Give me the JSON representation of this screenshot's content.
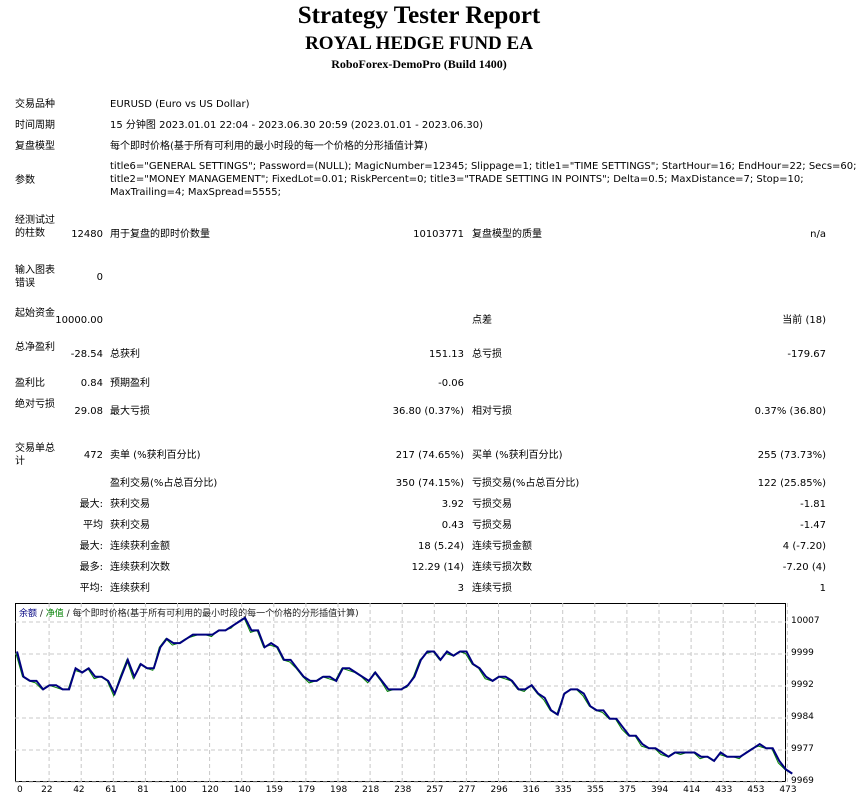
{
  "header": {
    "title": "Strategy Tester Report",
    "ea_name": "ROYAL HEDGE FUND EA",
    "server": "RoboForex-DemoPro (Build 1400)"
  },
  "info": {
    "symbol_label": "交易品种",
    "symbol_value": "EURUSD (Euro vs US Dollar)",
    "period_label": "时间周期",
    "period_value": "15 分钟图 2023.01.01 22:04 - 2023.06.30 20:59 (2023.01.01 - 2023.06.30)",
    "model_label": "复盘模型",
    "model_value": "每个即时价格(基于所有可利用的最小时段的每一个价格的分形插值计算)",
    "params_label": "参数",
    "params_line1": "title6=\"GENERAL SETTINGS\"; Password=(NULL); MagicNumber=12345; Slippage=1; title1=\"TIME SETTINGS\"; StartHour=16; EndHour=22; Secs=60;",
    "params_line2": "title2=\"MONEY MANAGEMENT\"; FixedLot=0.01; RiskPercent=0; title3=\"TRADE SETTING IN POINTS\"; Delta=0.5; MaxDistance=7; Stop=10;",
    "params_line3": "MaxTrailing=4; MaxSpread=5555;"
  },
  "stats": {
    "bars_label": "经测试过的柱数",
    "bars_value": "12480",
    "ticks_label": "用于复盘的即时价数量",
    "ticks_value": "10103771",
    "quality_label": "复盘模型的质量",
    "quality_value": "n/a",
    "errors_label": "输入图表错误",
    "errors_value": "0",
    "deposit_label": "起始资金",
    "deposit_value": "10000.00",
    "spread_label": "点差",
    "spread_value": "当前 (18)",
    "net_profit_label": "总净盈利",
    "net_profit_value": "-28.54",
    "gross_profit_label": "总获利",
    "gross_profit_value": "151.13",
    "gross_loss_label": "总亏损",
    "gross_loss_value": "-179.67",
    "profit_factor_label": "盈利比",
    "profit_factor_value": "0.84",
    "expected_payoff_label": "预期盈利",
    "expected_payoff_value": "-0.06",
    "abs_dd_label": "绝对亏损",
    "abs_dd_value": "29.08",
    "max_dd_label": "最大亏损",
    "max_dd_value": "36.80 (0.37%)",
    "rel_dd_label": "相对亏损",
    "rel_dd_value": "0.37% (36.80)",
    "total_trades_label": "交易单总计",
    "total_trades_value": "472",
    "short_label": "卖单 (%获利百分比)",
    "short_value": "217 (74.65%)",
    "long_label": "买单 (%获利百分比)",
    "long_value": "255 (73.73%)",
    "profit_trades_label": "盈利交易(%占总百分比)",
    "profit_trades_value": "350 (74.15%)",
    "loss_trades_label": "亏损交易(%占总百分比)",
    "loss_trades_value": "122 (25.85%)",
    "largest_prefix": "最大:",
    "largest_profit_label": "获利交易",
    "largest_profit_value": "3.92",
    "largest_loss_label": "亏损交易",
    "largest_loss_value": "-1.81",
    "average_prefix": "平均",
    "average_profit_label": "获利交易",
    "average_profit_value": "0.43",
    "average_loss_label": "亏损交易",
    "average_loss_value": "-1.47",
    "max_prefix": "最大:",
    "max_consec_wins_label": "连续获利金额",
    "max_consec_wins_value": "18 (5.24)",
    "max_consec_losses_label": "连续亏损金额",
    "max_consec_losses_value": "4 (-7.20)",
    "most_prefix": "最多:",
    "max_consec_profit_label": "连续获利次数",
    "max_consec_profit_value": "12.29 (14)",
    "max_consec_loss_label": "连续亏损次数",
    "max_consec_loss_value": "-7.20 (4)",
    "avg_prefix": "平均:",
    "avg_consec_wins_label": "连续获利",
    "avg_consec_wins_value": "3",
    "avg_consec_losses_label": "连续亏损",
    "avg_consec_losses_value": "1"
  },
  "chart": {
    "legend_balance": "余额",
    "legend_sep1": " / ",
    "legend_equity": "净值",
    "legend_sep2": " / ",
    "legend_model": "每个即时价格(基于所有可利用的最小时段的每一个价格的分形插值计算)",
    "balance_color": "#000080",
    "equity_color": "#008000"
  },
  "chart_data": {
    "type": "line",
    "title": "余额 / 净值 / 每个即时价格(基于所有可利用的最小时段的每一个价格的分形插值计算)",
    "xlabel": "",
    "ylabel": "",
    "x_ticks": [
      "0",
      "22",
      "42",
      "61",
      "81",
      "100",
      "120",
      "140",
      "159",
      "179",
      "198",
      "218",
      "238",
      "257",
      "277",
      "296",
      "316",
      "335",
      "355",
      "375",
      "394",
      "414",
      "433",
      "453",
      "473"
    ],
    "y_ticks": [
      "10007",
      "9999",
      "9992",
      "9984",
      "9977",
      "9969"
    ],
    "ylim": [
      9969,
      10011
    ],
    "xlim": [
      0,
      478
    ],
    "grid": true,
    "series": [
      {
        "name": "余额",
        "color": "#000080",
        "x": [
          0,
          4,
          8,
          12,
          16,
          20,
          24,
          28,
          32,
          36,
          40,
          44,
          48,
          52,
          56,
          60,
          64,
          68,
          72,
          76,
          80,
          84,
          88,
          92,
          96,
          100,
          104,
          108,
          112,
          116,
          120,
          124,
          128,
          132,
          136,
          140,
          144,
          148,
          152,
          156,
          160,
          164,
          168,
          172,
          176,
          180,
          184,
          188,
          192,
          196,
          200,
          204,
          208,
          212,
          216,
          220,
          224,
          228,
          232,
          236,
          240,
          244,
          248,
          252,
          256,
          260,
          264,
          268,
          272,
          276,
          280,
          284,
          288,
          292,
          296,
          300,
          304,
          308,
          312,
          316,
          320,
          324,
          328,
          332,
          336,
          340,
          344,
          348,
          352,
          356,
          360,
          364,
          368,
          372,
          376,
          380,
          384,
          388,
          392,
          396,
          400,
          404,
          408,
          412,
          416,
          420,
          424,
          428,
          432,
          436,
          440,
          444,
          448,
          452,
          456,
          460,
          464,
          468,
          472,
          476
        ],
        "values": [
          10000,
          9994,
          9993,
          9993,
          9991,
          9992,
          9992,
          9991,
          9991,
          9996,
          9995,
          9996,
          9994,
          9994,
          9993,
          9990,
          9994,
          9998,
          9994,
          9997,
          9996,
          9996,
          10001,
          10003,
          10002,
          10002,
          10003,
          10004,
          10004,
          10004,
          10004,
          10005,
          10005,
          10006,
          10007,
          10008,
          10005,
          10005,
          10001,
          10002,
          10001,
          9998,
          9998,
          9996,
          9994,
          9993,
          9993,
          9994,
          9994,
          9993,
          9996,
          9996,
          9995,
          9994,
          9993,
          9995,
          9993,
          9991,
          9991,
          9991,
          9992,
          9994,
          9998,
          10000,
          10000,
          9998,
          10000,
          9999,
          10000,
          10000,
          9997,
          9996,
          9994,
          9993,
          9994,
          9994,
          9993,
          9991,
          9991,
          9992,
          9990,
          9989,
          9986,
          9985,
          9990,
          9991,
          9991,
          9990,
          9987,
          9986,
          9986,
          9984,
          9984,
          9982,
          9980,
          9980,
          9978,
          9977,
          9977,
          9976,
          9975,
          9976,
          9976,
          9976,
          9976,
          9975,
          9975,
          9974,
          9976,
          9975,
          9975,
          9975,
          9976,
          9977,
          9978,
          9977,
          9977,
          9974,
          9972,
          9971
        ]
      },
      {
        "name": "净值",
        "color": "#008000",
        "note": "closely tracks 余额 with small deviations"
      }
    ]
  }
}
